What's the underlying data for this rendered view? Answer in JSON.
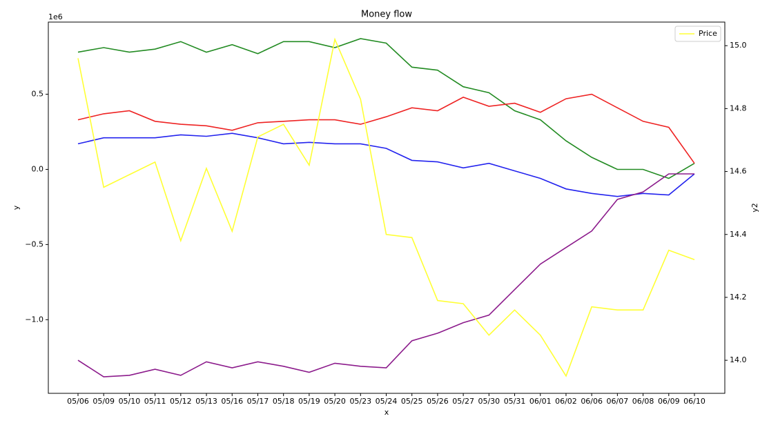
{
  "chart_data": {
    "type": "line",
    "title": "Money flow",
    "x_label": "x",
    "y_label": "y",
    "y2_label": "y2",
    "y_offset_label": "1e6",
    "categories": [
      "05/06",
      "05/09",
      "05/10",
      "05/11",
      "05/12",
      "05/13",
      "05/16",
      "05/17",
      "05/18",
      "05/19",
      "05/20",
      "05/23",
      "05/24",
      "05/25",
      "05/26",
      "05/27",
      "05/30",
      "05/31",
      "06/01",
      "06/02",
      "06/06",
      "06/07",
      "06/08",
      "06/09",
      "06/10"
    ],
    "series": [
      {
        "color": "#228b22",
        "values": [
          0.78,
          0.81,
          0.78,
          0.8,
          0.85,
          0.78,
          0.83,
          0.77,
          0.85,
          0.85,
          0.81,
          0.87,
          0.84,
          0.68,
          0.66,
          0.55,
          0.51,
          0.39,
          0.33,
          0.19,
          0.08,
          0.0,
          0.0,
          -0.06,
          0.04
        ]
      },
      {
        "color": "#ee2222",
        "values": [
          0.33,
          0.37,
          0.39,
          0.32,
          0.3,
          0.29,
          0.26,
          0.31,
          0.32,
          0.33,
          0.33,
          0.3,
          0.35,
          0.41,
          0.39,
          0.48,
          0.42,
          0.44,
          0.38,
          0.47,
          0.5,
          0.41,
          0.32,
          0.28,
          0.04
        ]
      },
      {
        "color": "#2222ee",
        "values": [
          0.17,
          0.21,
          0.21,
          0.21,
          0.23,
          0.22,
          0.24,
          0.21,
          0.17,
          0.18,
          0.17,
          0.17,
          0.14,
          0.06,
          0.05,
          0.01,
          0.04,
          -0.01,
          -0.06,
          -0.13,
          -0.16,
          -0.18,
          -0.16,
          -0.17,
          -0.03
        ]
      },
      {
        "color": "#8b1a8b",
        "values": [
          -1.27,
          -1.38,
          -1.37,
          -1.33,
          -1.37,
          -1.28,
          -1.32,
          -1.28,
          -1.31,
          -1.35,
          -1.29,
          -1.31,
          -1.32,
          -1.14,
          -1.09,
          -1.02,
          -0.97,
          -0.8,
          -0.63,
          -0.52,
          -0.41,
          -0.2,
          -0.15,
          -0.03,
          -0.03
        ]
      },
      {
        "name": "Price",
        "color": "#ffff33",
        "axis": "y2",
        "values": [
          14.96,
          14.55,
          14.59,
          14.63,
          14.38,
          14.61,
          14.41,
          14.71,
          14.75,
          14.62,
          15.02,
          14.83,
          14.4,
          14.39,
          14.19,
          14.18,
          14.08,
          14.16,
          14.08,
          13.95,
          14.17,
          14.16,
          14.16,
          14.35,
          14.32
        ]
      }
    ],
    "ylim": [
      -1.49,
      0.98
    ],
    "yticks": [
      {
        "value": -1.0,
        "label": "−1.0"
      },
      {
        "value": -0.5,
        "label": "−0.5"
      },
      {
        "value": 0.0,
        "label": "0.0"
      },
      {
        "value": 0.5,
        "label": "0.5"
      }
    ],
    "y2lim": [
      13.895,
      15.075
    ],
    "y2ticks": [
      {
        "value": 14.0,
        "label": "14.0"
      },
      {
        "value": 14.2,
        "label": "14.2"
      },
      {
        "value": 14.4,
        "label": "14.4"
      },
      {
        "value": 14.6,
        "label": "14.6"
      },
      {
        "value": 14.8,
        "label": "14.8"
      },
      {
        "value": 15.0,
        "label": "15.0"
      }
    ],
    "legend": "upper right"
  }
}
